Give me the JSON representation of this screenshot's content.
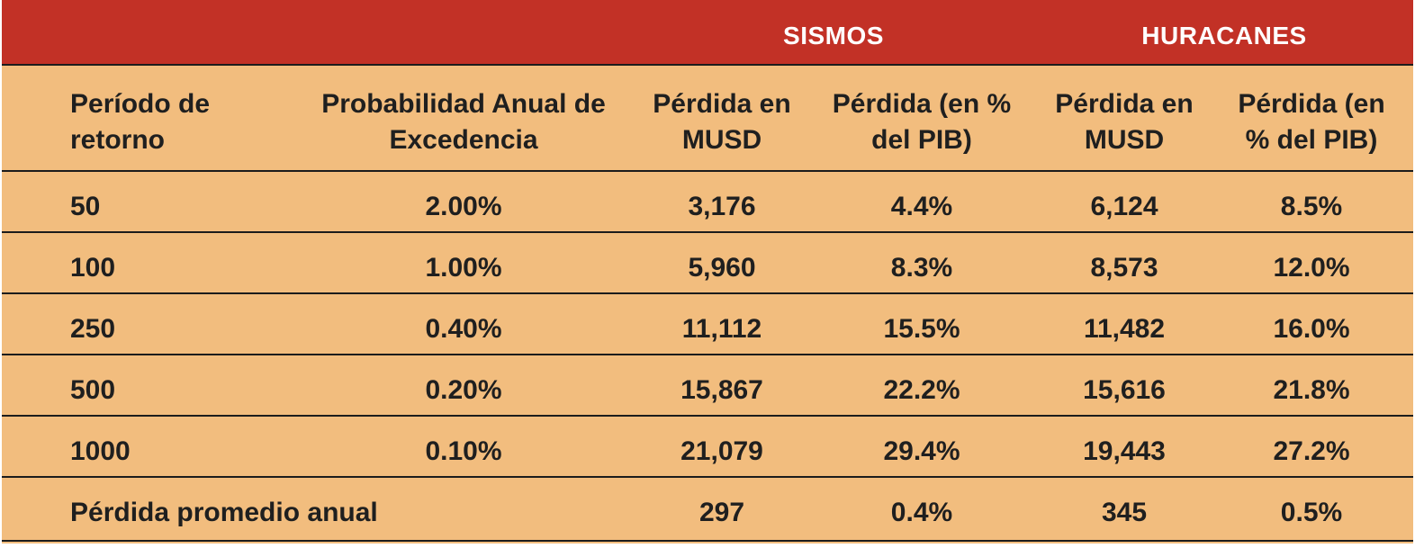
{
  "groups": {
    "earthquakes": "SISMOS",
    "hurricanes": "HURACANES"
  },
  "headers": {
    "return_period": [
      "Período de",
      "retorno"
    ],
    "annual_prob": [
      "Probabilidad Anual de",
      "Excedencia"
    ],
    "eq_loss_musd": [
      "Pérdida en",
      "MUSD"
    ],
    "eq_loss_pct": [
      "Pérdida (en %",
      "del PIB)"
    ],
    "hu_loss_musd": [
      "Pérdida en",
      "MUSD"
    ],
    "hu_loss_pct": [
      "Pérdida (en",
      "% del PIB)"
    ]
  },
  "rows": [
    {
      "period": "50",
      "prob": "2.00%",
      "eq_musd": "3,176",
      "eq_pct": "4.4%",
      "hu_musd": "6,124",
      "hu_pct": "8.5%"
    },
    {
      "period": "100",
      "prob": "1.00%",
      "eq_musd": "5,960",
      "eq_pct": "8.3%",
      "hu_musd": "8,573",
      "hu_pct": "12.0%"
    },
    {
      "period": "250",
      "prob": "0.40%",
      "eq_musd": "11,112",
      "eq_pct": "15.5%",
      "hu_musd": "11,482",
      "hu_pct": "16.0%"
    },
    {
      "period": "500",
      "prob": "0.20%",
      "eq_musd": "15,867",
      "eq_pct": "22.2%",
      "hu_musd": "15,616",
      "hu_pct": "21.8%"
    },
    {
      "period": "1000",
      "prob": "0.10%",
      "eq_musd": "21,079",
      "eq_pct": "29.4%",
      "hu_musd": "19,443",
      "hu_pct": "27.2%"
    }
  ],
  "footer": {
    "label": "Pérdida promedio anual",
    "eq_musd": "297",
    "eq_pct": "0.4%",
    "hu_musd": "345",
    "hu_pct": "0.5%"
  },
  "colors": {
    "header_band": "#c23126",
    "body_fill": "#f2bd7e",
    "rule": "#1c1c1c"
  }
}
